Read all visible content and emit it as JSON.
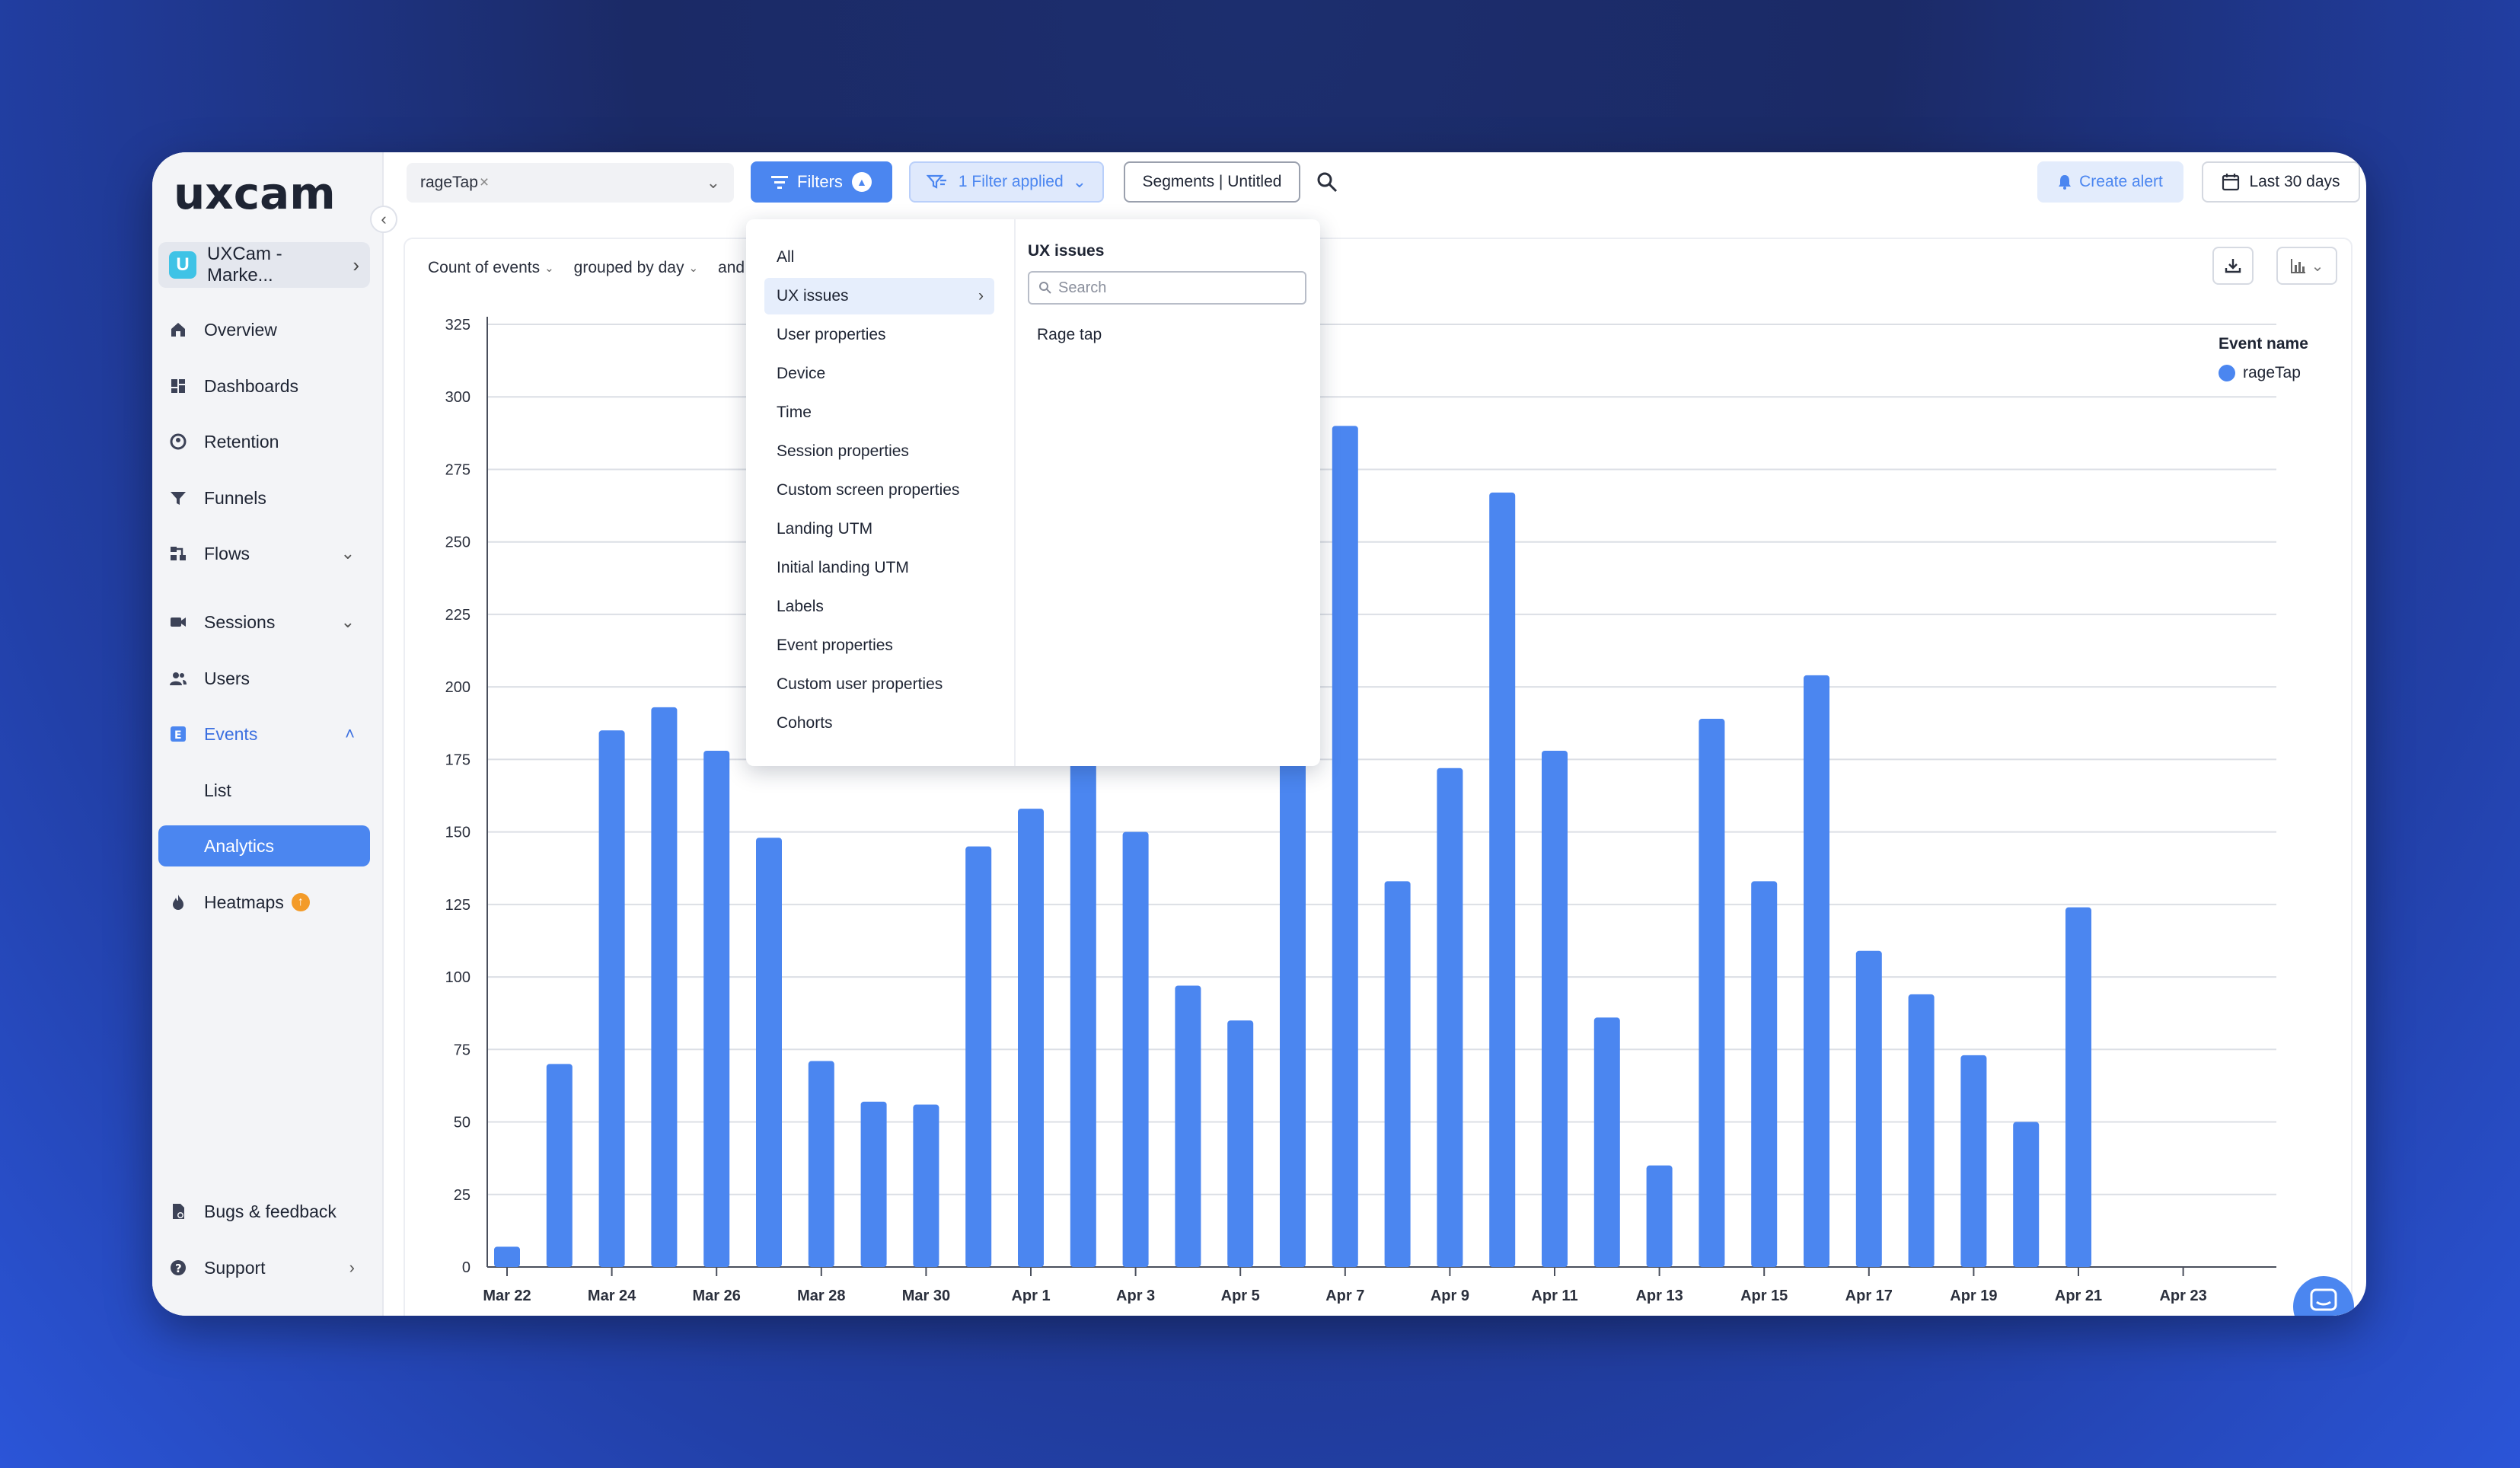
{
  "brand": {
    "logo_text": "uxcam",
    "accent": "#4b86f0"
  },
  "sidebar": {
    "workspace": {
      "initial": "U",
      "name": "UXCam - Marke..."
    },
    "items": [
      {
        "label": "Overview",
        "icon": "home-icon"
      },
      {
        "label": "Dashboards",
        "icon": "dashboard-icon"
      },
      {
        "label": "Retention",
        "icon": "retention-icon"
      },
      {
        "label": "Funnels",
        "icon": "funnel-icon"
      },
      {
        "label": "Flows",
        "icon": "flows-icon"
      },
      {
        "label": "Sessions",
        "icon": "video-icon"
      },
      {
        "label": "Users",
        "icon": "users-icon"
      },
      {
        "label": "Events",
        "icon": "events-icon"
      },
      {
        "label": "List"
      },
      {
        "label": "Analytics"
      },
      {
        "label": "Heatmaps",
        "icon": "fire-icon"
      },
      {
        "label": "Bugs & feedback",
        "icon": "bug-icon"
      },
      {
        "label": "Support",
        "icon": "help-icon"
      }
    ]
  },
  "topbar": {
    "event_chip": "rageTap",
    "filters_label": "Filters",
    "filter_applied_label": "1 Filter applied",
    "segments_label": "Segments | Untitled",
    "create_alert_label": "Create alert",
    "date_range_label": "Last 30 days"
  },
  "query": {
    "metric": "Count of events",
    "grouping": "grouped by day",
    "extra": "and ev"
  },
  "dropdown": {
    "categories": [
      "All",
      "UX issues",
      "User properties",
      "Device",
      "Time",
      "Session properties",
      "Custom screen properties",
      "Landing UTM",
      "Initial landing UTM",
      "Labels",
      "Event properties",
      "Custom user properties",
      "Cohorts"
    ],
    "selected_title": "UX issues",
    "search_placeholder": "Search",
    "options": [
      "Rage tap"
    ]
  },
  "legend": {
    "title": "Event name",
    "item": "rageTap"
  },
  "chart_data": {
    "type": "bar",
    "x": [
      "Mar 22",
      "Mar 23",
      "Mar 24",
      "Mar 25",
      "Mar 26",
      "Mar 27",
      "Mar 28",
      "Mar 29",
      "Mar 30",
      "Mar 31",
      "Apr 1",
      "Apr 2",
      "Apr 3",
      "Apr 4",
      "Apr 5",
      "Apr 6",
      "Apr 7",
      "Apr 8",
      "Apr 9",
      "Apr 10",
      "Apr 11",
      "Apr 12",
      "Apr 13",
      "Apr 14",
      "Apr 15",
      "Apr 16",
      "Apr 17",
      "Apr 18",
      "Apr 19",
      "Apr 20",
      "Apr 21"
    ],
    "x_tick_labels": [
      "Mar 22",
      "Mar 24",
      "Mar 26",
      "Mar 28",
      "Mar 30",
      "Apr 1",
      "Apr 3",
      "Apr 5",
      "Apr 7",
      "Apr 9",
      "Apr 11",
      "Apr 13",
      "Apr 15",
      "Apr 17",
      "Apr 19",
      "Apr 21",
      "Apr 23"
    ],
    "series": [
      {
        "name": "rageTap",
        "color": "#4b86f0",
        "values": [
          7,
          70,
          185,
          193,
          178,
          148,
          71,
          57,
          56,
          145,
          158,
          175,
          150,
          97,
          85,
          188,
          290,
          133,
          172,
          267,
          178,
          86,
          35,
          189,
          133,
          204,
          109,
          94,
          73,
          50,
          124
        ]
      }
    ],
    "y_ticks": [
      0,
      25,
      50,
      75,
      100,
      125,
      150,
      175,
      200,
      225,
      250,
      275,
      300,
      325
    ],
    "ylim": [
      0,
      325
    ],
    "grid": true,
    "legend_position": "top-right"
  }
}
